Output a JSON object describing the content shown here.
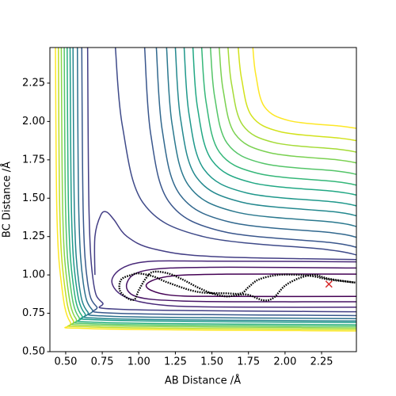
{
  "chart_data": {
    "type": "contour",
    "xlabel": "AB Distance /Å",
    "ylabel": "BC Distance /Å",
    "xlim": [
      0.392,
      2.488
    ],
    "ylim": [
      0.5,
      2.482
    ],
    "xticks": [
      {
        "value": 0.5,
        "label": "0.50"
      },
      0.75,
      {
        "value": 1.0,
        "label": "1.00"
      },
      1.25,
      {
        "value": 1.5,
        "label": "1.50"
      },
      1.75,
      {
        "value": 2.0,
        "label": "2.00"
      },
      2.25
    ],
    "yticks": [
      {
        "value": 0.5,
        "label": "0.50"
      },
      0.75,
      {
        "value": 1.0,
        "label": "1.00"
      },
      1.25,
      {
        "value": 1.5,
        "label": "1.50"
      },
      1.75,
      {
        "value": 2.0,
        "label": "2.00"
      },
      2.25
    ],
    "contours": [
      {
        "color": "#fde725",
        "x": [
          1.78,
          1.8,
          1.86,
          2.03,
          2.38,
          2.49
        ],
        "y": [
          2.48,
          2.305,
          2.095,
          2.005,
          1.97,
          1.955
        ]
      },
      {
        "color": "#d2e21b",
        "x": [
          1.68,
          1.703,
          1.772,
          1.968,
          2.37,
          2.49
        ],
        "y": [
          2.48,
          2.278,
          2.036,
          1.933,
          1.892,
          1.875
        ]
      },
      {
        "color": "#a5db36",
        "x": [
          1.61,
          1.635,
          1.711,
          1.925,
          2.366,
          2.49
        ],
        "y": [
          2.48,
          2.241,
          1.976,
          1.863,
          1.819,
          1.8
        ]
      },
      {
        "color": "#7ad151",
        "x": [
          1.55,
          1.577,
          1.658,
          1.888,
          2.36,
          2.49
        ],
        "y": [
          2.48,
          2.203,
          1.919,
          1.798,
          1.75,
          1.73
        ]
      },
      {
        "color": "#54c568",
        "x": [
          1.49,
          1.519,
          1.605,
          1.85,
          2.354,
          2.49
        ],
        "y": [
          2.48,
          2.159,
          1.857,
          1.727,
          1.677,
          1.655
        ]
      },
      {
        "color": "#35b779",
        "x": [
          1.43,
          1.461,
          1.552,
          1.813,
          2.348,
          2.49
        ],
        "y": [
          2.48,
          2.121,
          1.799,
          1.662,
          1.608,
          1.585
        ]
      },
      {
        "color": "#22a884",
        "x": [
          1.37,
          1.402,
          1.5,
          1.775,
          2.342,
          2.49
        ],
        "y": [
          2.48,
          2.087,
          1.747,
          1.601,
          1.544,
          1.52
        ]
      },
      {
        "color": "#1f988b",
        "x": [
          1.31,
          1.344,
          1.446,
          1.735,
          2.33,
          2.49
        ],
        "y": [
          2.48,
          2.045,
          1.688,
          1.535,
          1.476,
          1.45
        ]
      },
      {
        "color": "#23888e",
        "x": [
          1.25,
          1.286,
          1.394,
          1.7,
          2.33,
          2.49
        ],
        "y": [
          2.48,
          2.015,
          1.637,
          1.475,
          1.412,
          1.385
        ]
      },
      {
        "color": "#2a788e",
        "x": [
          1.19,
          1.228,
          1.342,
          1.665,
          2.33,
          2.49
        ],
        "y": [
          2.48,
          1.98,
          1.581,
          1.41,
          1.344,
          1.315
        ]
      },
      {
        "color": "#31688e",
        "x": [
          1.12,
          1.16,
          1.28,
          1.62,
          2.32,
          2.49
        ],
        "y": [
          2.48,
          1.945,
          1.525,
          1.345,
          1.275,
          1.245
        ]
      },
      {
        "color": "#39568c",
        "x": [
          1.04,
          1.082,
          1.208,
          1.565,
          2.3,
          2.49
        ],
        "y": [
          2.48,
          1.915,
          1.474,
          1.285,
          1.212,
          1.18
        ]
      },
      {
        "color": "#3e4a89",
        "x": [
          0.84,
          0.888,
          1.032,
          1.44,
          2.28,
          2.49
        ],
        "y": [
          2.48,
          1.97,
          1.466,
          1.25,
          1.166,
          1.13
        ]
      },
      {
        "color": "#433e85",
        "x": [
          0.7,
          0.7,
          0.74,
          0.78,
          0.83,
          0.92,
          1.1,
          1.5,
          2.49
        ],
        "y": [
          1.0,
          1.25,
          1.39,
          1.41,
          1.36,
          1.25,
          1.17,
          1.12,
          1.1
        ]
      },
      {
        "color": "#482878",
        "x": [
          2.49,
          1.5,
          1.0,
          0.82,
          0.9,
          1.2,
          1.8,
          2.49
        ],
        "y": [
          1.085,
          1.09,
          1.08,
          0.98,
          0.86,
          0.8,
          0.79,
          0.79
        ]
      },
      {
        "color": "#471365",
        "x": [
          2.49,
          1.5,
          1.05,
          0.92,
          0.98,
          1.3,
          2.0,
          2.49
        ],
        "y": [
          1.045,
          1.05,
          1.03,
          0.95,
          0.86,
          0.83,
          0.825,
          0.825
        ]
      },
      {
        "color": "#440154",
        "x": [
          2.49,
          1.6,
          1.2,
          1.05,
          1.2,
          1.6,
          2.49
        ],
        "y": [
          1.005,
          1.005,
          0.99,
          0.93,
          0.87,
          0.86,
          0.86
        ]
      },
      {
        "color": "#fde725",
        "x": [
          0.43,
          0.44,
          0.47,
          0.53,
          0.68,
          2.49
        ],
        "y": [
          2.48,
          1.4,
          0.95,
          0.695,
          0.65,
          0.635
        ]
      },
      {
        "color": "#c2df23",
        "x": [
          0.45,
          0.46,
          0.49,
          0.55,
          0.7,
          2.49
        ],
        "y": [
          2.48,
          1.4,
          0.95,
          0.705,
          0.66,
          0.645
        ]
      },
      {
        "color": "#86d549",
        "x": [
          0.47,
          0.48,
          0.51,
          0.57,
          0.72,
          2.49
        ],
        "y": [
          2.48,
          1.4,
          0.95,
          0.715,
          0.67,
          0.655
        ]
      },
      {
        "color": "#52c569",
        "x": [
          0.49,
          0.5,
          0.53,
          0.59,
          0.74,
          2.49
        ],
        "y": [
          2.48,
          1.4,
          0.95,
          0.725,
          0.68,
          0.665
        ]
      },
      {
        "color": "#2ab07f",
        "x": [
          0.51,
          0.52,
          0.55,
          0.61,
          0.76,
          2.49
        ],
        "y": [
          2.48,
          1.4,
          0.95,
          0.735,
          0.69,
          0.675
        ]
      },
      {
        "color": "#1e9b8a",
        "x": [
          0.53,
          0.54,
          0.57,
          0.63,
          0.78,
          2.49
        ],
        "y": [
          2.48,
          1.4,
          0.95,
          0.75,
          0.705,
          0.69
        ]
      },
      {
        "color": "#25858e",
        "x": [
          0.55,
          0.56,
          0.59,
          0.65,
          0.8,
          2.49
        ],
        "y": [
          2.48,
          1.4,
          0.95,
          0.76,
          0.715,
          0.7
        ]
      },
      {
        "color": "#2d708e",
        "x": [
          0.58,
          0.59,
          0.62,
          0.68,
          0.83,
          2.49
        ],
        "y": [
          2.48,
          1.4,
          0.95,
          0.775,
          0.73,
          0.715
        ]
      },
      {
        "color": "#38588c",
        "x": [
          0.61,
          0.62,
          0.65,
          0.71,
          0.86,
          2.49
        ],
        "y": [
          2.48,
          1.4,
          0.95,
          0.795,
          0.75,
          0.735
        ]
      },
      {
        "color": "#433e85",
        "x": [
          0.65,
          0.66,
          0.69,
          0.75,
          0.9,
          2.49
        ],
        "y": [
          2.48,
          1.4,
          0.95,
          0.82,
          0.775,
          0.76
        ]
      }
    ],
    "trajectory": {
      "color": "#000000",
      "x": [
        2.48,
        2.3,
        2.2,
        2.1,
        2.0,
        1.92,
        1.85,
        1.75,
        1.68,
        1.6,
        1.5,
        1.4,
        1.3,
        1.2,
        1.1,
        1.05,
        1.0,
        0.97,
        0.92,
        0.87,
        0.88,
        0.95,
        1.0,
        1.1,
        1.2,
        1.4,
        1.6,
        1.7,
        1.75,
        1.82,
        1.95,
        2.1,
        2.2,
        2.3,
        2.48
      ],
      "y": [
        0.95,
        0.975,
        1.0,
        0.98,
        0.93,
        0.85,
        0.835,
        0.87,
        0.87,
        0.86,
        0.88,
        0.92,
        0.97,
        1.01,
        1.02,
        0.98,
        0.9,
        0.84,
        0.85,
        0.9,
        0.97,
        1.0,
        1.01,
        0.99,
        0.95,
        0.89,
        0.88,
        0.88,
        0.92,
        0.97,
        1.0,
        1.0,
        0.99,
        0.97,
        0.95
      ]
    },
    "marker": {
      "x": 2.3,
      "y": 0.94,
      "color": "#d62728"
    }
  }
}
